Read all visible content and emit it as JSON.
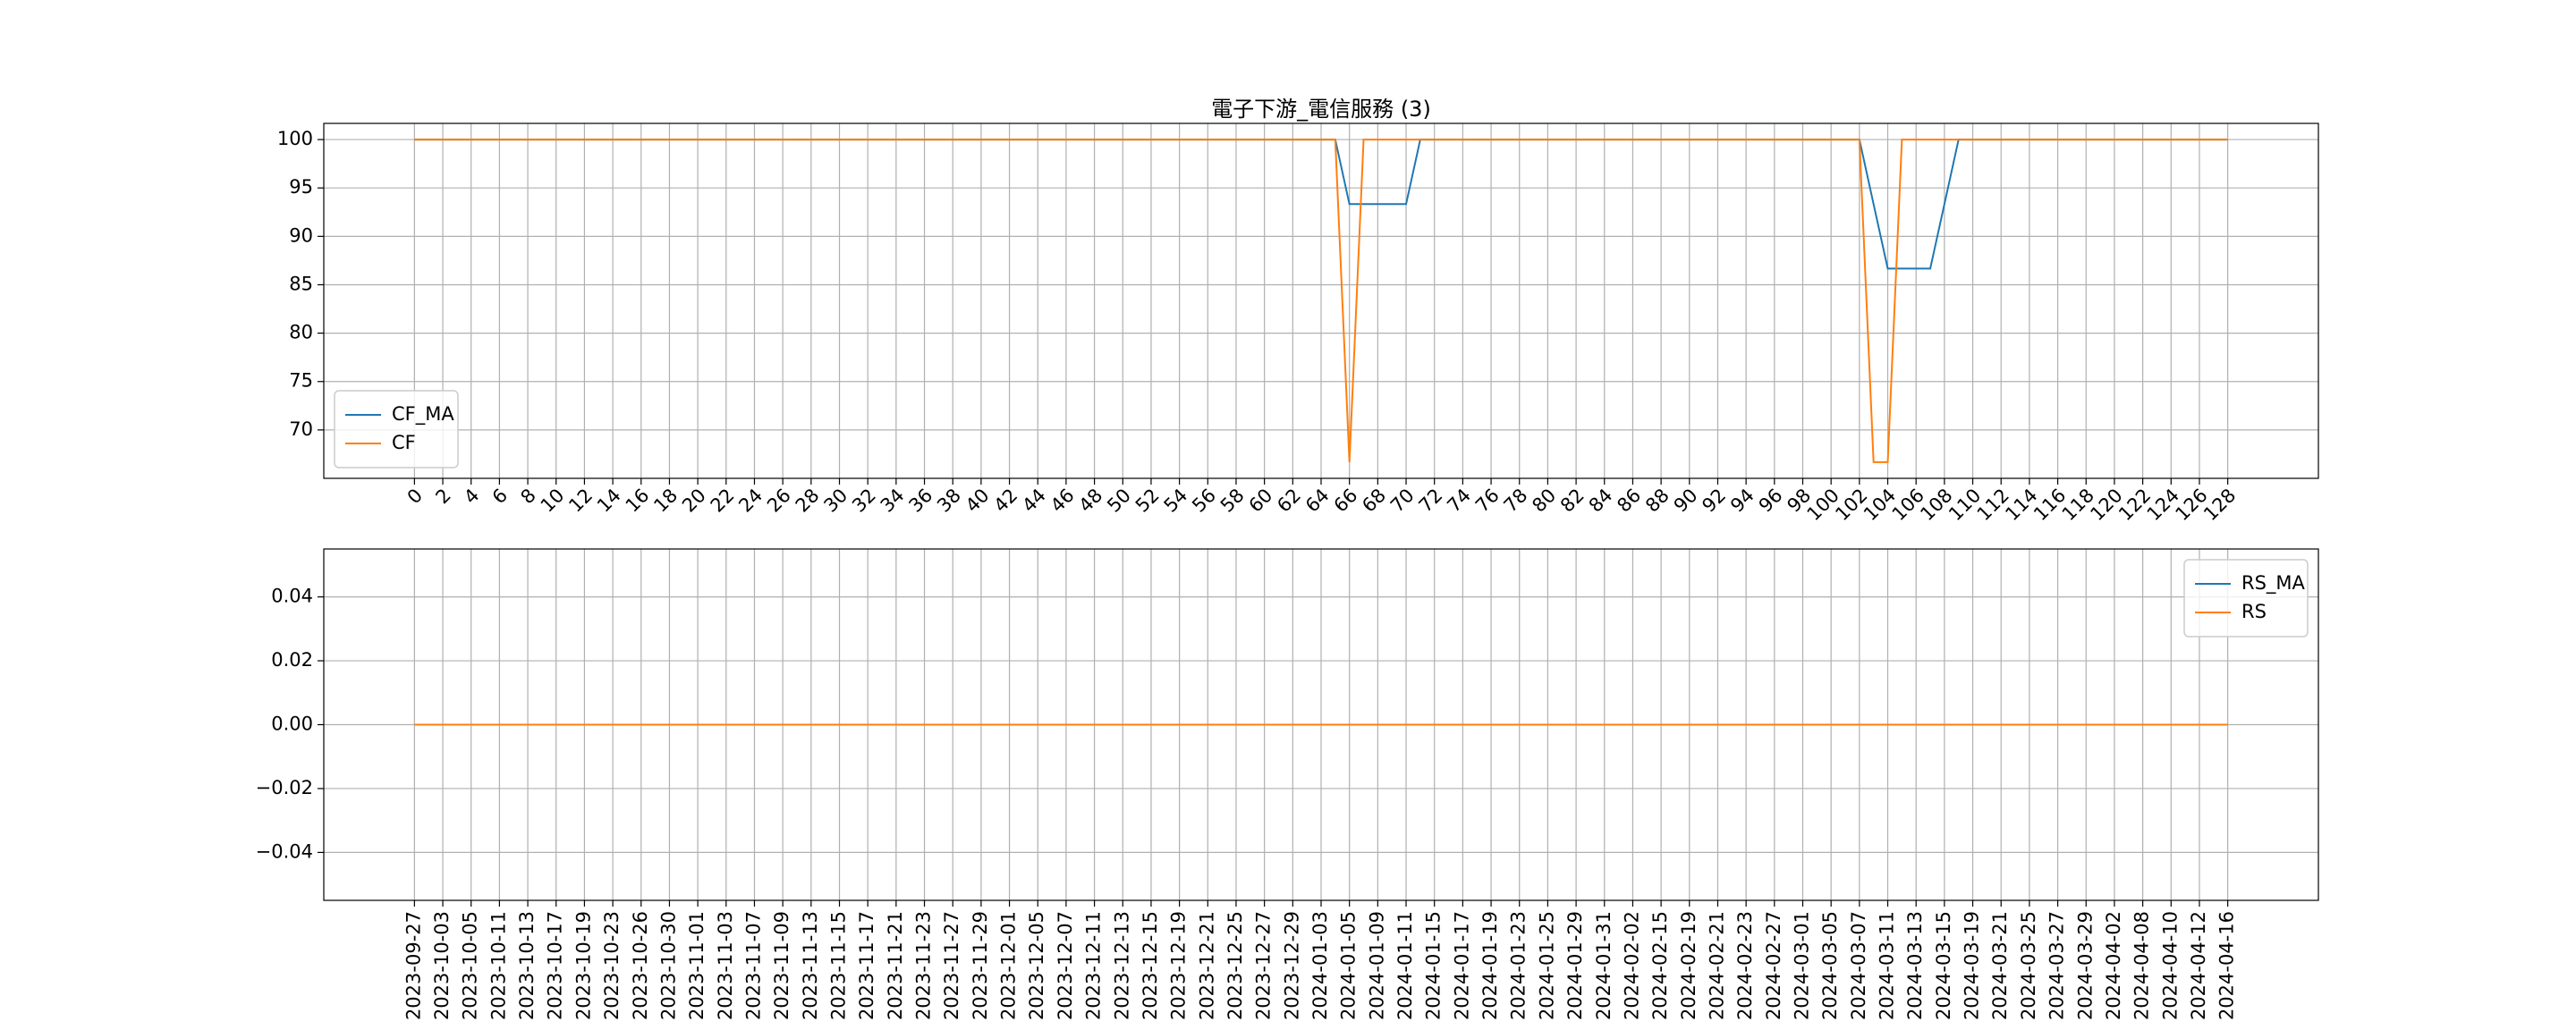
{
  "chart_data": [
    {
      "type": "line",
      "title": "電子下游_電信服務 (3)",
      "x": [
        0,
        1,
        2,
        3,
        4,
        5,
        6,
        7,
        8,
        9,
        10,
        11,
        12,
        13,
        14,
        15,
        16,
        17,
        18,
        19,
        20,
        21,
        22,
        23,
        24,
        25,
        26,
        27,
        28,
        29,
        30,
        31,
        32,
        33,
        34,
        35,
        36,
        37,
        38,
        39,
        40,
        41,
        42,
        43,
        44,
        45,
        46,
        47,
        48,
        49,
        50,
        51,
        52,
        53,
        54,
        55,
        56,
        57,
        58,
        59,
        60,
        61,
        62,
        63,
        64,
        65,
        66,
        67,
        68,
        69,
        70,
        71,
        72,
        73,
        74,
        75,
        76,
        77,
        78,
        79,
        80,
        81,
        82,
        83,
        84,
        85,
        86,
        87,
        88,
        89,
        90,
        91,
        92,
        93,
        94,
        95,
        96,
        97,
        98,
        99,
        100,
        101,
        102,
        103,
        104,
        105,
        106,
        107,
        108,
        109,
        110,
        111,
        112,
        113,
        114,
        115,
        116,
        117,
        118,
        119,
        120,
        121,
        122,
        123,
        124,
        125,
        126,
        127,
        128
      ],
      "series": [
        {
          "name": "CF_MA",
          "color": "#1f77b4",
          "values": [
            100,
            100,
            100,
            100,
            100,
            100,
            100,
            100,
            100,
            100,
            100,
            100,
            100,
            100,
            100,
            100,
            100,
            100,
            100,
            100,
            100,
            100,
            100,
            100,
            100,
            100,
            100,
            100,
            100,
            100,
            100,
            100,
            100,
            100,
            100,
            100,
            100,
            100,
            100,
            100,
            100,
            100,
            100,
            100,
            100,
            100,
            100,
            100,
            100,
            100,
            100,
            100,
            100,
            100,
            100,
            100,
            100,
            100,
            100,
            100,
            100,
            100,
            100,
            100,
            100,
            100,
            93.33,
            93.33,
            93.33,
            93.33,
            93.33,
            100,
            100,
            100,
            100,
            100,
            100,
            100,
            100,
            100,
            100,
            100,
            100,
            100,
            100,
            100,
            100,
            100,
            100,
            100,
            100,
            100,
            100,
            100,
            100,
            100,
            100,
            100,
            100,
            100,
            100,
            100,
            100,
            93.33,
            86.67,
            86.67,
            86.67,
            86.67,
            93.33,
            100,
            100,
            100,
            100,
            100,
            100,
            100,
            100,
            100,
            100,
            100,
            100,
            100,
            100,
            100,
            100,
            100,
            100,
            100,
            100
          ]
        },
        {
          "name": "CF",
          "color": "#ff7f0e",
          "values": [
            100,
            100,
            100,
            100,
            100,
            100,
            100,
            100,
            100,
            100,
            100,
            100,
            100,
            100,
            100,
            100,
            100,
            100,
            100,
            100,
            100,
            100,
            100,
            100,
            100,
            100,
            100,
            100,
            100,
            100,
            100,
            100,
            100,
            100,
            100,
            100,
            100,
            100,
            100,
            100,
            100,
            100,
            100,
            100,
            100,
            100,
            100,
            100,
            100,
            100,
            100,
            100,
            100,
            100,
            100,
            100,
            100,
            100,
            100,
            100,
            100,
            100,
            100,
            100,
            100,
            100,
            66.67,
            100,
            100,
            100,
            100,
            100,
            100,
            100,
            100,
            100,
            100,
            100,
            100,
            100,
            100,
            100,
            100,
            100,
            100,
            100,
            100,
            100,
            100,
            100,
            100,
            100,
            100,
            100,
            100,
            100,
            100,
            100,
            100,
            100,
            100,
            100,
            100,
            66.67,
            66.67,
            100,
            100,
            100,
            100,
            100,
            100,
            100,
            100,
            100,
            100,
            100,
            100,
            100,
            100,
            100,
            100,
            100,
            100,
            100,
            100,
            100,
            100,
            100,
            100
          ]
        }
      ],
      "xlim": [
        -6.4,
        134.4
      ],
      "xticks": [
        0,
        2,
        4,
        6,
        8,
        10,
        12,
        14,
        16,
        18,
        20,
        22,
        24,
        26,
        28,
        30,
        32,
        34,
        36,
        38,
        40,
        42,
        44,
        46,
        48,
        50,
        52,
        54,
        56,
        58,
        60,
        62,
        64,
        66,
        68,
        70,
        72,
        74,
        76,
        78,
        80,
        82,
        84,
        86,
        88,
        90,
        92,
        94,
        96,
        98,
        100,
        102,
        104,
        106,
        108,
        110,
        112,
        114,
        116,
        118,
        120,
        122,
        124,
        126,
        128
      ],
      "ylim": [
        65,
        101.67
      ],
      "yticks": [
        70,
        75,
        80,
        85,
        90,
        95,
        100
      ],
      "grid": true,
      "legend": "lower left"
    },
    {
      "type": "line",
      "categories": [
        "2023-09-27",
        null,
        "2023-10-03",
        null,
        "2023-10-05",
        null,
        "2023-10-11",
        null,
        "2023-10-13",
        null,
        "2023-10-17",
        null,
        "2023-10-19",
        null,
        "2023-10-23",
        null,
        "2023-10-26",
        null,
        "2023-10-30",
        null,
        "2023-11-01",
        null,
        "2023-11-03",
        null,
        "2023-11-07",
        null,
        "2023-11-09",
        null,
        "2023-11-13",
        null,
        "2023-11-15",
        null,
        "2023-11-17",
        null,
        "2023-11-21",
        null,
        "2023-11-23",
        null,
        "2023-11-27",
        null,
        "2023-11-29",
        null,
        "2023-12-01",
        null,
        "2023-12-05",
        null,
        "2023-12-07",
        null,
        "2023-12-11",
        null,
        "2023-12-13",
        null,
        "2023-12-15",
        null,
        "2023-12-19",
        null,
        "2023-12-21",
        null,
        "2023-12-25",
        null,
        "2023-12-27",
        null,
        "2023-12-29",
        null,
        "2024-01-03",
        null,
        "2024-01-05",
        null,
        "2024-01-09",
        null,
        "2024-01-11",
        null,
        "2024-01-15",
        null,
        "2024-01-17",
        null,
        "2024-01-19",
        null,
        "2024-01-23",
        null,
        "2024-01-25",
        null,
        "2024-01-29",
        null,
        "2024-01-31",
        null,
        "2024-02-02",
        null,
        "2024-02-15",
        null,
        "2024-02-19",
        null,
        "2024-02-21",
        null,
        "2024-02-23",
        null,
        "2024-02-27",
        null,
        "2024-03-01",
        null,
        "2024-03-05",
        null,
        "2024-03-07",
        null,
        "2024-03-11",
        null,
        "2024-03-13",
        null,
        "2024-03-15",
        null,
        "2024-03-19",
        null,
        "2024-03-21",
        null,
        "2024-03-25",
        null,
        "2024-03-27",
        null,
        "2024-03-29",
        null,
        "2024-04-02",
        null,
        "2024-04-08",
        null,
        "2024-04-10",
        null,
        "2024-04-12",
        null,
        "2024-04-16"
      ],
      "series": [
        {
          "name": "RS_MA",
          "color": "#1f77b4",
          "values": [
            0,
            0,
            0,
            0,
            0,
            0,
            0,
            0,
            0,
            0,
            0,
            0,
            0,
            0,
            0,
            0,
            0,
            0,
            0,
            0,
            0,
            0,
            0,
            0,
            0,
            0,
            0,
            0,
            0,
            0,
            0,
            0,
            0,
            0,
            0,
            0,
            0,
            0,
            0,
            0,
            0,
            0,
            0,
            0,
            0,
            0,
            0,
            0,
            0,
            0,
            0,
            0,
            0,
            0,
            0,
            0,
            0,
            0,
            0,
            0,
            0,
            0,
            0,
            0,
            0,
            0,
            0,
            0,
            0,
            0,
            0,
            0,
            0,
            0,
            0,
            0,
            0,
            0,
            0,
            0,
            0,
            0,
            0,
            0,
            0,
            0,
            0,
            0,
            0,
            0,
            0,
            0,
            0,
            0,
            0,
            0,
            0,
            0,
            0,
            0,
            0,
            0,
            0,
            0,
            0,
            0,
            0,
            0,
            0,
            0,
            0,
            0,
            0,
            0,
            0,
            0,
            0,
            0,
            0,
            0,
            0,
            0,
            0,
            0,
            0,
            0,
            0,
            0,
            0
          ]
        },
        {
          "name": "RS",
          "color": "#ff7f0e",
          "values": [
            0,
            0,
            0,
            0,
            0,
            0,
            0,
            0,
            0,
            0,
            0,
            0,
            0,
            0,
            0,
            0,
            0,
            0,
            0,
            0,
            0,
            0,
            0,
            0,
            0,
            0,
            0,
            0,
            0,
            0,
            0,
            0,
            0,
            0,
            0,
            0,
            0,
            0,
            0,
            0,
            0,
            0,
            0,
            0,
            0,
            0,
            0,
            0,
            0,
            0,
            0,
            0,
            0,
            0,
            0,
            0,
            0,
            0,
            0,
            0,
            0,
            0,
            0,
            0,
            0,
            0,
            0,
            0,
            0,
            0,
            0,
            0,
            0,
            0,
            0,
            0,
            0,
            0,
            0,
            0,
            0,
            0,
            0,
            0,
            0,
            0,
            0,
            0,
            0,
            0,
            0,
            0,
            0,
            0,
            0,
            0,
            0,
            0,
            0,
            0,
            0,
            0,
            0,
            0,
            0,
            0,
            0,
            0,
            0,
            0,
            0,
            0,
            0,
            0,
            0,
            0,
            0,
            0,
            0,
            0,
            0,
            0,
            0,
            0,
            0,
            0,
            0,
            0,
            0
          ]
        }
      ],
      "ylim": [
        -0.055,
        0.055
      ],
      "yticks": [
        {
          "value": -0.04,
          "label": "−0.04"
        },
        {
          "value": -0.02,
          "label": "−0.02"
        },
        {
          "value": 0,
          "label": "0.00"
        },
        {
          "value": 0.02,
          "label": "0.02"
        },
        {
          "value": 0.04,
          "label": "0.04"
        }
      ],
      "grid": true,
      "legend": "upper right"
    }
  ]
}
